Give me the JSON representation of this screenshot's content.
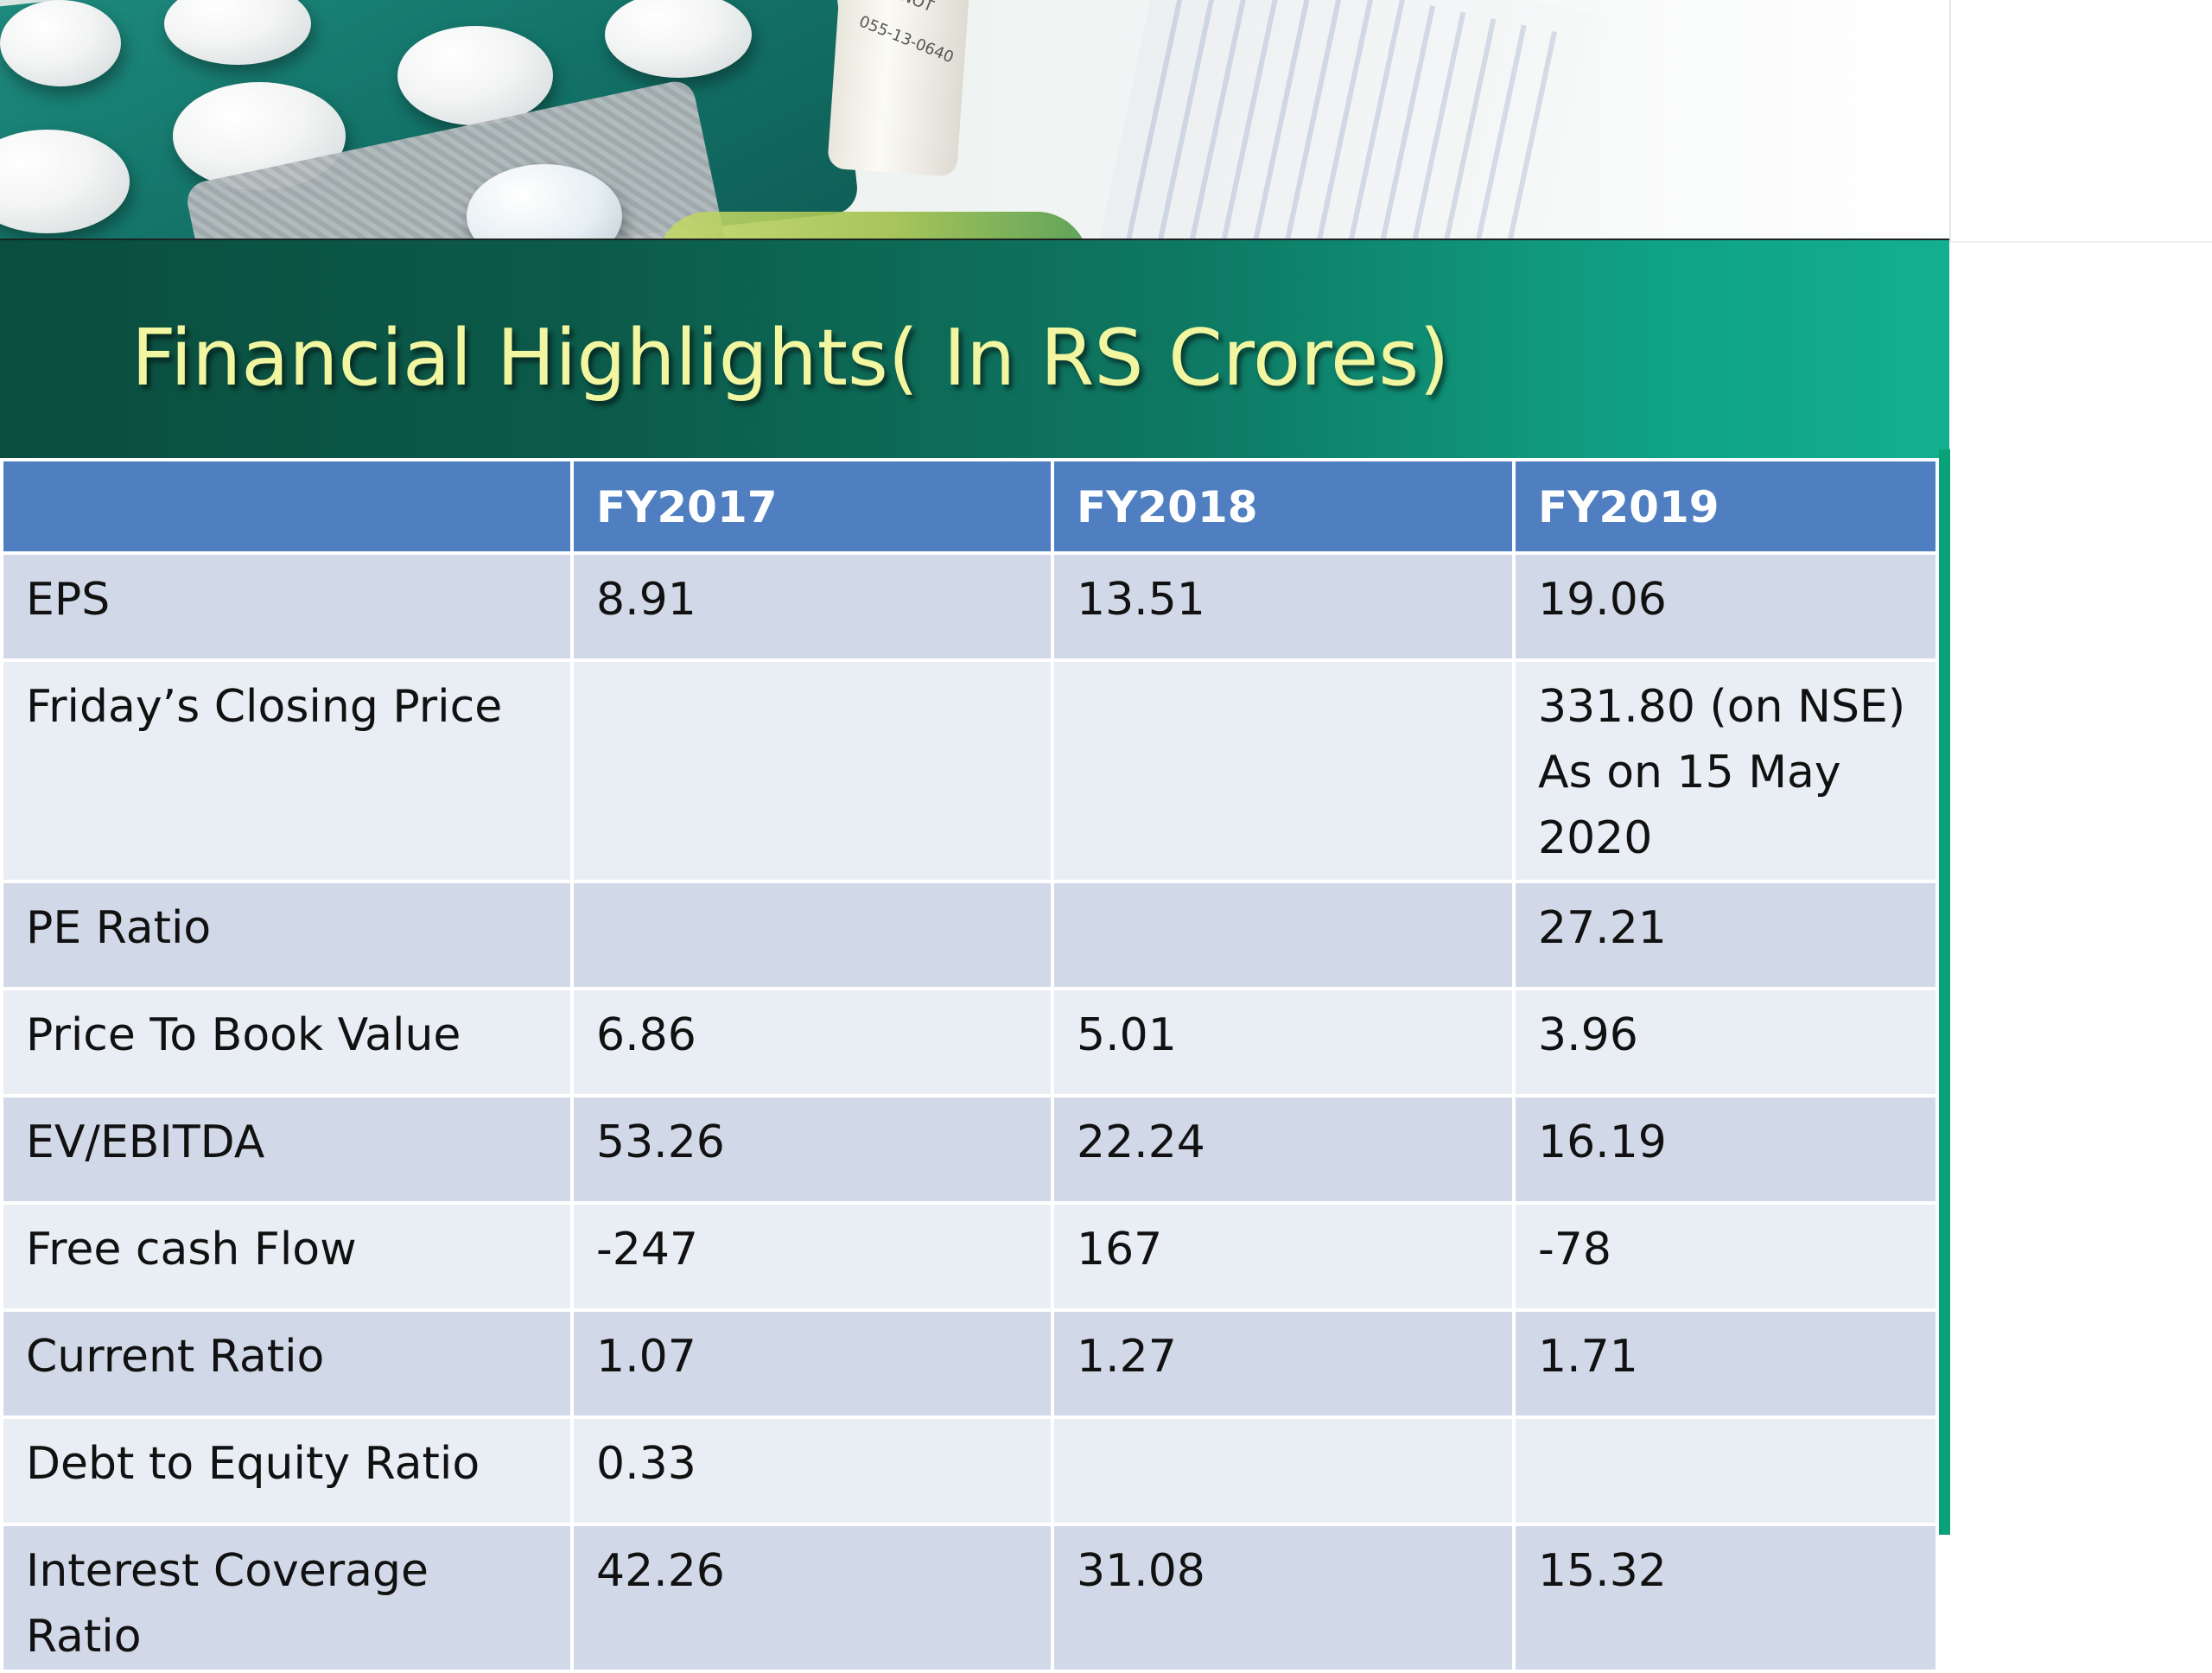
{
  "slide": {
    "title": "Financial Highlights( In RS Crores)"
  },
  "photo": {
    "bottle_label_line1": "DO NOT",
    "bottle_label_line2": "055-13-0640"
  },
  "table": {
    "headers": [
      "",
      "FY2017",
      "FY2018",
      "FY2019"
    ],
    "rows": [
      {
        "label": "EPS",
        "fy2017": "8.91",
        "fy2018": "13.51",
        "fy2019": "19.06"
      },
      {
        "label": "Friday’s Closing Price",
        "fy2017": "",
        "fy2018": "",
        "fy2019": "331.80 (on NSE) As on 15 May 2020"
      },
      {
        "label": "PE Ratio",
        "fy2017": "",
        "fy2018": "",
        "fy2019": "27.21"
      },
      {
        "label": "Price To Book Value",
        "fy2017": "6.86",
        "fy2018": "5.01",
        "fy2019": "3.96"
      },
      {
        "label": "EV/EBITDA",
        "fy2017": "53.26",
        "fy2018": "22.24",
        "fy2019": "16.19"
      },
      {
        "label": "Free cash Flow",
        "fy2017": "-247",
        "fy2018": "167",
        "fy2019": "-78"
      },
      {
        "label": "Current Ratio",
        "fy2017": "1.07",
        "fy2018": "1.27",
        "fy2019": "1.71"
      },
      {
        "label": "Debt to Equity Ratio",
        "fy2017": "0.33",
        "fy2018": "",
        "fy2019": ""
      },
      {
        "label": "Interest Coverage Ratio",
        "fy2017": "42.26",
        "fy2018": "31.08",
        "fy2019": "15.32"
      }
    ]
  },
  "colors": {
    "header_bg": "#4f7fc0",
    "row_dark": "#d1d9e8",
    "row_light": "#e9edf4",
    "title_text": "#f2f6a0",
    "band_teal": "#0e7762"
  }
}
